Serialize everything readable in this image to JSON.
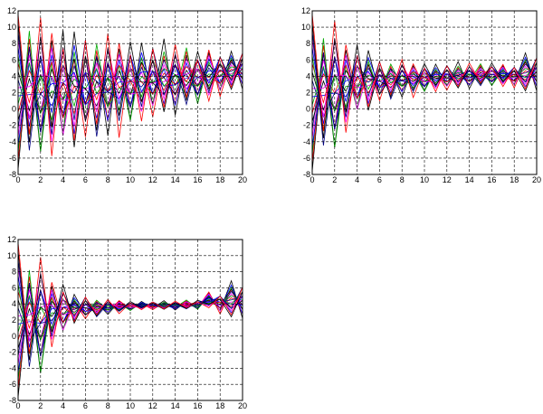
{
  "chart_data": [
    {
      "type": "line",
      "panel": "top-left",
      "xlim": [
        0,
        20
      ],
      "ylim": [
        -8,
        12
      ],
      "xticks": [
        "0",
        "2",
        "4",
        "6",
        "8",
        "10",
        "12",
        "14",
        "16",
        "18",
        "20"
      ],
      "yticks": [
        "-8",
        "-6",
        "-4",
        "-2",
        "0",
        "2",
        "4",
        "6",
        "8",
        "10",
        "12"
      ],
      "grid": true,
      "series_count": 20,
      "trajectory_x": [
        0,
        1,
        2,
        3,
        4,
        5,
        6,
        7,
        8,
        9,
        10,
        11,
        12,
        13,
        14,
        15,
        16,
        17,
        18,
        19,
        20
      ],
      "envelope_upper": [
        11.6,
        11.5,
        11.2,
        10.6,
        10.5,
        10.3,
        10.0,
        9.8,
        9.6,
        9.4,
        9.2,
        9.0,
        8.8,
        8.6,
        8.4,
        8.2,
        7.9,
        7.6,
        7.3,
        7.2,
        7.2
      ],
      "envelope_lower": [
        -7.4,
        -7.0,
        -6.6,
        -6.2,
        -5.8,
        -5.5,
        -5.0,
        -4.5,
        -4.0,
        -3.5,
        -3.0,
        -2.4,
        -1.8,
        -1.4,
        -1.0,
        -0.6,
        -0.2,
        0.6,
        1.2,
        2.0,
        2.4
      ],
      "colors": [
        "#000000",
        "#ff0000",
        "#00aa00",
        "#0000ff",
        "#ff00ff",
        "#000080"
      ]
    },
    {
      "type": "line",
      "panel": "top-right",
      "xlim": [
        0,
        20
      ],
      "ylim": [
        -8,
        12
      ],
      "xticks": [
        "0",
        "2",
        "4",
        "6",
        "8",
        "10",
        "12",
        "14",
        "16",
        "18",
        "20"
      ],
      "yticks": [
        "-8",
        "-6",
        "-4",
        "-2",
        "0",
        "2",
        "4",
        "6",
        "8",
        "10",
        "12"
      ],
      "grid": true,
      "series_count": 20,
      "trajectory_x": [
        0,
        1,
        2,
        3,
        4,
        5,
        6,
        7,
        8,
        9,
        10,
        11,
        12,
        13,
        14,
        15,
        16,
        17,
        18,
        19,
        20
      ],
      "envelope_upper": [
        11.6,
        10.4,
        10.8,
        8.8,
        8.4,
        7.6,
        6.4,
        6.2,
        6.2,
        6.0,
        5.9,
        5.8,
        5.8,
        5.8,
        5.8,
        5.8,
        6.0,
        5.6,
        5.6,
        7.0,
        6.6
      ],
      "envelope_lower": [
        -7.6,
        -6.2,
        -6.0,
        -3.2,
        -1.6,
        -0.6,
        0.4,
        0.8,
        1.2,
        1.4,
        1.6,
        1.8,
        2.0,
        2.2,
        2.4,
        2.4,
        2.5,
        2.6,
        2.4,
        1.8,
        2.2
      ],
      "colors": [
        "#000000",
        "#ff0000",
        "#00aa00",
        "#0000ff",
        "#ff00ff",
        "#000080"
      ]
    },
    {
      "type": "line",
      "panel": "bottom-left",
      "xlim": [
        0,
        20
      ],
      "ylim": [
        -8,
        12
      ],
      "xticks": [
        "0",
        "2",
        "4",
        "6",
        "8",
        "10",
        "12",
        "14",
        "16",
        "18",
        "20"
      ],
      "yticks": [
        "-8",
        "-6",
        "-4",
        "-2",
        "0",
        "2",
        "4",
        "6",
        "8",
        "10",
        "12"
      ],
      "grid": true,
      "series_count": 20,
      "trajectory_x": [
        0,
        1,
        2,
        3,
        4,
        5,
        6,
        7,
        8,
        9,
        10,
        11,
        12,
        13,
        14,
        15,
        16,
        17,
        18,
        19,
        20
      ],
      "envelope_upper": [
        11.6,
        9.8,
        9.8,
        7.4,
        6.8,
        5.4,
        5.2,
        4.8,
        4.6,
        4.6,
        4.4,
        4.4,
        4.4,
        4.4,
        4.4,
        4.6,
        4.6,
        5.6,
        5.4,
        7.0,
        6.4
      ],
      "envelope_lower": [
        -7.6,
        -5.4,
        -5.8,
        -1.6,
        -0.4,
        1.4,
        1.8,
        2.2,
        2.6,
        2.8,
        3.0,
        3.2,
        3.2,
        3.2,
        3.2,
        3.2,
        3.2,
        3.4,
        2.6,
        2.0,
        2.2
      ],
      "colors": [
        "#000000",
        "#ff0000",
        "#00aa00",
        "#0000ff",
        "#ff00ff",
        "#000080"
      ]
    }
  ]
}
